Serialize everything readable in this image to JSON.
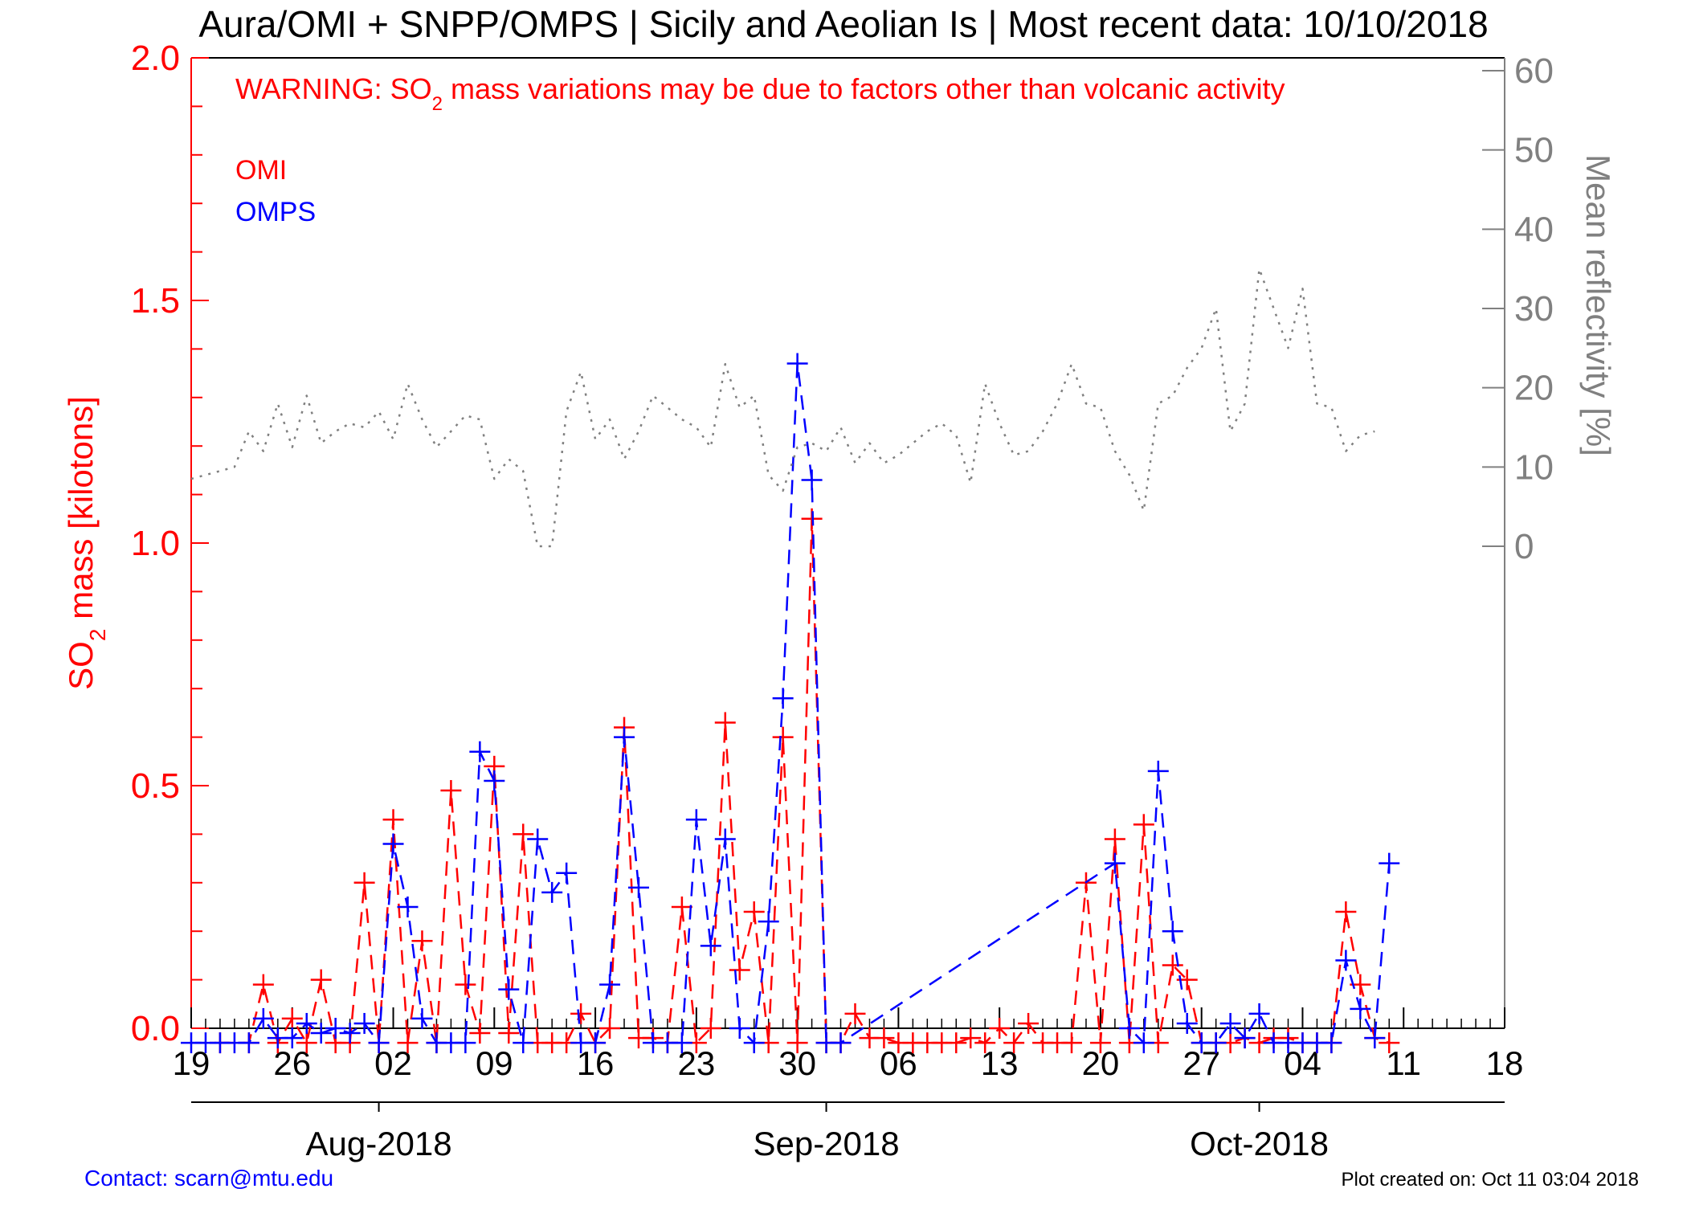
{
  "title": "Aura/OMI + SNPP/OMPS | Sicily and Aeolian Is | Most recent data: 10/10/2018",
  "warning": {
    "prefix": "WARNING: SO",
    "sub": "2",
    "suffix": " mass variations may be due to factors other than volcanic activity"
  },
  "contact": "Contact: scarn@mtu.edu",
  "created": "Plot created on: Oct 11 03:04 2018",
  "colors": {
    "omi": "#ff0000",
    "omps": "#0000ff",
    "reflectivity": "#808080",
    "axis": "#000000"
  },
  "chart_data": {
    "type": "line",
    "x_start": "2018-07-19",
    "x_end": "2018-10-18",
    "x_day_ticks": [
      "19",
      "26",
      "02",
      "09",
      "16",
      "23",
      "30",
      "06",
      "13",
      "20",
      "27",
      "04",
      "11",
      "18"
    ],
    "month_labels": [
      {
        "label": "Aug-2018",
        "date": "2018-08-01"
      },
      {
        "label": "Sep-2018",
        "date": "2018-09-01"
      },
      {
        "label": "Oct-2018",
        "date": "2018-10-01"
      }
    ],
    "ylabel_left": {
      "prefix": "SO",
      "sub": "2",
      "suffix": " mass [kilotons]"
    },
    "ylim_left": [
      0,
      2.0
    ],
    "yticks_left": [
      "0.0",
      "0.5",
      "1.0",
      "1.5",
      "2.0"
    ],
    "ylabel_right": "Mean reflectivity [%]",
    "ylim_right": [
      0,
      60
    ],
    "yticks_right": [
      "0",
      "10",
      "20",
      "30",
      "40",
      "50",
      "60"
    ],
    "legend": {
      "position": "top-left",
      "entries": [
        "OMI",
        "OMPS"
      ]
    },
    "series": [
      {
        "name": "OMI",
        "color": "#ff0000",
        "style": "dashed",
        "marker": "+",
        "points": [
          [
            "2018-07-21",
            -0.03
          ],
          [
            "2018-07-23",
            -0.03
          ],
          [
            "2018-07-24",
            0.09
          ],
          [
            "2018-07-25",
            -0.03
          ],
          [
            "2018-07-26",
            0.02
          ],
          [
            "2018-07-27",
            -0.03
          ],
          [
            "2018-07-28",
            0.1
          ],
          [
            "2018-07-29",
            -0.03
          ],
          [
            "2018-07-30",
            -0.03
          ],
          [
            "2018-07-31",
            0.3
          ],
          [
            "2018-08-01",
            -0.03
          ],
          [
            "2018-08-02",
            0.43
          ],
          [
            "2018-08-03",
            -0.03
          ],
          [
            "2018-08-04",
            0.18
          ],
          [
            "2018-08-05",
            -0.03
          ],
          [
            "2018-08-06",
            0.49
          ],
          [
            "2018-08-07",
            0.09
          ],
          [
            "2018-08-08",
            -0.01
          ],
          [
            "2018-08-09",
            0.54
          ],
          [
            "2018-08-10",
            -0.01
          ],
          [
            "2018-08-11",
            0.4
          ],
          [
            "2018-08-12",
            -0.03
          ],
          [
            "2018-08-13",
            -0.03
          ],
          [
            "2018-08-14",
            -0.03
          ],
          [
            "2018-08-15",
            0.03
          ],
          [
            "2018-08-16",
            -0.03
          ],
          [
            "2018-08-17",
            0.0
          ],
          [
            "2018-08-18",
            0.62
          ],
          [
            "2018-08-19",
            -0.02
          ],
          [
            "2018-08-20",
            -0.02
          ],
          [
            "2018-08-21",
            -0.03
          ],
          [
            "2018-08-22",
            0.25
          ],
          [
            "2018-08-23",
            -0.03
          ],
          [
            "2018-08-24",
            0.0
          ],
          [
            "2018-08-25",
            0.63
          ],
          [
            "2018-08-26",
            0.12
          ],
          [
            "2018-08-27",
            0.24
          ],
          [
            "2018-08-28",
            -0.03
          ],
          [
            "2018-08-29",
            0.6
          ],
          [
            "2018-08-30",
            -0.03
          ],
          [
            "2018-08-31",
            1.05
          ],
          [
            "2018-09-01",
            -0.03
          ],
          [
            "2018-09-02",
            -0.03
          ],
          [
            "2018-09-03",
            0.03
          ],
          [
            "2018-09-04",
            -0.02
          ],
          [
            "2018-09-05",
            -0.02
          ],
          [
            "2018-09-06",
            -0.03
          ],
          [
            "2018-09-07",
            -0.03
          ],
          [
            "2018-09-08",
            -0.03
          ],
          [
            "2018-09-09",
            -0.03
          ],
          [
            "2018-09-10",
            -0.03
          ],
          [
            "2018-09-11",
            -0.02
          ],
          [
            "2018-09-12",
            -0.03
          ],
          [
            "2018-09-13",
            0.0
          ],
          [
            "2018-09-14",
            -0.03
          ],
          [
            "2018-09-15",
            0.01
          ],
          [
            "2018-09-16",
            -0.03
          ],
          [
            "2018-09-17",
            -0.03
          ],
          [
            "2018-09-18",
            -0.03
          ],
          [
            "2018-09-19",
            0.3
          ],
          [
            "2018-09-20",
            -0.03
          ],
          [
            "2018-09-21",
            0.39
          ],
          [
            "2018-09-22",
            -0.03
          ],
          [
            "2018-09-23",
            0.42
          ],
          [
            "2018-09-24",
            -0.03
          ],
          [
            "2018-09-25",
            0.13
          ],
          [
            "2018-09-26",
            0.1
          ],
          [
            "2018-09-27",
            -0.03
          ],
          [
            "2018-09-28",
            -0.03
          ],
          [
            "2018-09-29",
            -0.03
          ],
          [
            "2018-09-30",
            -0.02
          ],
          [
            "2018-10-01",
            -0.03
          ],
          [
            "2018-10-02",
            -0.02
          ],
          [
            "2018-10-03",
            -0.02
          ],
          [
            "2018-10-04",
            -0.03
          ],
          [
            "2018-10-05",
            -0.03
          ],
          [
            "2018-10-06",
            -0.03
          ],
          [
            "2018-10-07",
            0.24
          ],
          [
            "2018-10-08",
            0.09
          ],
          [
            "2018-10-09",
            -0.02
          ],
          [
            "2018-10-10",
            -0.03
          ]
        ]
      },
      {
        "name": "OMPS",
        "color": "#0000ff",
        "style": "dashed",
        "marker": "+",
        "points": [
          [
            "2018-07-19",
            -0.03
          ],
          [
            "2018-07-20",
            -0.03
          ],
          [
            "2018-07-21",
            -0.03
          ],
          [
            "2018-07-22",
            -0.03
          ],
          [
            "2018-07-23",
            -0.03
          ],
          [
            "2018-07-24",
            0.02
          ],
          [
            "2018-07-25",
            -0.02
          ],
          [
            "2018-07-26",
            -0.02
          ],
          [
            "2018-07-27",
            0.01
          ],
          [
            "2018-07-28",
            -0.01
          ],
          [
            "2018-07-29",
            0.0
          ],
          [
            "2018-07-30",
            -0.01
          ],
          [
            "2018-07-31",
            0.01
          ],
          [
            "2018-08-01",
            -0.03
          ],
          [
            "2018-08-02",
            0.38
          ],
          [
            "2018-08-03",
            0.25
          ],
          [
            "2018-08-04",
            0.02
          ],
          [
            "2018-08-05",
            -0.03
          ],
          [
            "2018-08-06",
            -0.03
          ],
          [
            "2018-08-07",
            -0.03
          ],
          [
            "2018-08-08",
            0.57
          ],
          [
            "2018-08-09",
            0.51
          ],
          [
            "2018-08-10",
            0.08
          ],
          [
            "2018-08-11",
            -0.03
          ],
          [
            "2018-08-12",
            0.39
          ],
          [
            "2018-08-13",
            0.28
          ],
          [
            "2018-08-14",
            0.32
          ],
          [
            "2018-08-15",
            -0.03
          ],
          [
            "2018-08-16",
            -0.03
          ],
          [
            "2018-08-17",
            0.09
          ],
          [
            "2018-08-18",
            0.6
          ],
          [
            "2018-08-19",
            0.29
          ],
          [
            "2018-08-20",
            -0.03
          ],
          [
            "2018-08-21",
            -0.03
          ],
          [
            "2018-08-22",
            -0.03
          ],
          [
            "2018-08-23",
            0.43
          ],
          [
            "2018-08-24",
            0.17
          ],
          [
            "2018-08-25",
            0.39
          ],
          [
            "2018-08-26",
            0.0
          ],
          [
            "2018-08-27",
            -0.03
          ],
          [
            "2018-08-28",
            0.22
          ],
          [
            "2018-08-29",
            0.68
          ],
          [
            "2018-08-30",
            1.37
          ],
          [
            "2018-08-31",
            1.13
          ],
          [
            "2018-09-01",
            -0.03
          ],
          [
            "2018-09-02",
            -0.03
          ],
          [
            "2018-09-21",
            0.34
          ],
          [
            "2018-09-22",
            0.0
          ],
          [
            "2018-09-23",
            -0.03
          ],
          [
            "2018-09-24",
            0.53
          ],
          [
            "2018-09-25",
            0.2
          ],
          [
            "2018-09-26",
            0.01
          ],
          [
            "2018-09-27",
            -0.03
          ],
          [
            "2018-09-28",
            -0.03
          ],
          [
            "2018-09-29",
            0.01
          ],
          [
            "2018-09-30",
            -0.02
          ],
          [
            "2018-10-01",
            0.03
          ],
          [
            "2018-10-02",
            -0.03
          ],
          [
            "2018-10-03",
            -0.03
          ],
          [
            "2018-10-04",
            -0.03
          ],
          [
            "2018-10-05",
            -0.03
          ],
          [
            "2018-10-06",
            -0.03
          ],
          [
            "2018-10-07",
            0.14
          ],
          [
            "2018-10-08",
            0.04
          ],
          [
            "2018-10-09",
            -0.02
          ],
          [
            "2018-10-10",
            0.34
          ]
        ]
      },
      {
        "name": "Mean reflectivity",
        "color": "#808080",
        "style": "dotted",
        "axis": "right",
        "points": [
          [
            "2018-07-19",
            8.5
          ],
          [
            "2018-07-20",
            9
          ],
          [
            "2018-07-21",
            9.5
          ],
          [
            "2018-07-22",
            10
          ],
          [
            "2018-07-23",
            14.5
          ],
          [
            "2018-07-24",
            12
          ],
          [
            "2018-07-25",
            18
          ],
          [
            "2018-07-26",
            12.5
          ],
          [
            "2018-07-27",
            19
          ],
          [
            "2018-07-28",
            13
          ],
          [
            "2018-07-29",
            14.5
          ],
          [
            "2018-07-30",
            15.5
          ],
          [
            "2018-07-31",
            15
          ],
          [
            "2018-08-01",
            17
          ],
          [
            "2018-08-02",
            13.5
          ],
          [
            "2018-08-03",
            20.5
          ],
          [
            "2018-08-04",
            16
          ],
          [
            "2018-08-05",
            12.5
          ],
          [
            "2018-08-06",
            14.5
          ],
          [
            "2018-08-07",
            16.5
          ],
          [
            "2018-08-08",
            16
          ],
          [
            "2018-08-09",
            8.5
          ],
          [
            "2018-08-10",
            11
          ],
          [
            "2018-08-11",
            9.5
          ],
          [
            "2018-08-12",
            0
          ],
          [
            "2018-08-13",
            0
          ],
          [
            "2018-08-14",
            17
          ],
          [
            "2018-08-15",
            22
          ],
          [
            "2018-08-16",
            13.5
          ],
          [
            "2018-08-17",
            16
          ],
          [
            "2018-08-18",
            11
          ],
          [
            "2018-08-19",
            14.5
          ],
          [
            "2018-08-20",
            19
          ],
          [
            "2018-08-21",
            17.5
          ],
          [
            "2018-08-22",
            16
          ],
          [
            "2018-08-23",
            15
          ],
          [
            "2018-08-24",
            12.5
          ],
          [
            "2018-08-25",
            23
          ],
          [
            "2018-08-26",
            17.5
          ],
          [
            "2018-08-27",
            19
          ],
          [
            "2018-08-28",
            9
          ],
          [
            "2018-08-29",
            7
          ],
          [
            "2018-08-30",
            12.5
          ],
          [
            "2018-08-31",
            13
          ],
          [
            "2018-09-01",
            12
          ],
          [
            "2018-09-02",
            15
          ],
          [
            "2018-09-03",
            10.5
          ],
          [
            "2018-09-04",
            13
          ],
          [
            "2018-09-05",
            10.5
          ],
          [
            "2018-09-06",
            11.5
          ],
          [
            "2018-09-07",
            13
          ],
          [
            "2018-09-08",
            14.5
          ],
          [
            "2018-09-09",
            15.5
          ],
          [
            "2018-09-10",
            14
          ],
          [
            "2018-09-11",
            8
          ],
          [
            "2018-09-12",
            20.5
          ],
          [
            "2018-09-13",
            15.5
          ],
          [
            "2018-09-14",
            11.5
          ],
          [
            "2018-09-15",
            12
          ],
          [
            "2018-09-16",
            14.5
          ],
          [
            "2018-09-17",
            18
          ],
          [
            "2018-09-18",
            23
          ],
          [
            "2018-09-19",
            18
          ],
          [
            "2018-09-20",
            17.5
          ],
          [
            "2018-09-21",
            12
          ],
          [
            "2018-09-22",
            9
          ],
          [
            "2018-09-23",
            4.5
          ],
          [
            "2018-09-24",
            18
          ],
          [
            "2018-09-25",
            19
          ],
          [
            "2018-09-26",
            22.5
          ],
          [
            "2018-09-27",
            25
          ],
          [
            "2018-09-28",
            30
          ],
          [
            "2018-09-29",
            14.5
          ],
          [
            "2018-09-30",
            18
          ],
          [
            "2018-10-01",
            35
          ],
          [
            "2018-10-02",
            30
          ],
          [
            "2018-10-03",
            25
          ],
          [
            "2018-10-04",
            32.5
          ],
          [
            "2018-10-05",
            18
          ],
          [
            "2018-10-06",
            17.5
          ],
          [
            "2018-10-07",
            12
          ],
          [
            "2018-10-08",
            14
          ],
          [
            "2018-10-09",
            14.5
          ]
        ]
      }
    ]
  }
}
